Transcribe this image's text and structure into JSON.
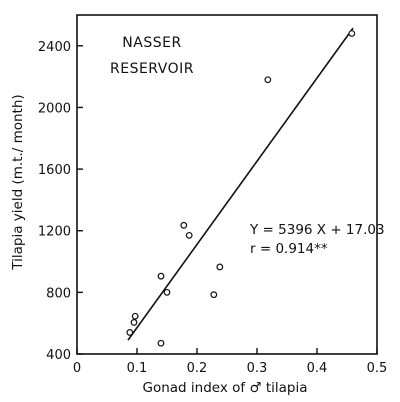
{
  "chart_data": {
    "type": "scatter",
    "title": "",
    "annotation_lines": [
      "NASSER",
      "RESERVOIR"
    ],
    "xlabel": "Gonad index of ♂ tilapia",
    "ylabel": "Tilapia yield (m.t./ month)",
    "xlim": [
      0,
      0.5
    ],
    "ylim": [
      400,
      2600
    ],
    "x_ticks": [
      0,
      0.1,
      0.2,
      0.3,
      0.4,
      0.5
    ],
    "x_tick_labels": [
      "0",
      "0.1",
      "0.2",
      "0.3",
      "0.4",
      "0.5"
    ],
    "y_ticks": [
      400,
      800,
      1200,
      1600,
      2000,
      2400
    ],
    "y_tick_labels": [
      "400",
      "800",
      "1200",
      "1600",
      "2000",
      "2400"
    ],
    "grid": false,
    "points": [
      {
        "x": 0.088,
        "y": 540
      },
      {
        "x": 0.095,
        "y": 605
      },
      {
        "x": 0.097,
        "y": 645
      },
      {
        "x": 0.14,
        "y": 470
      },
      {
        "x": 0.14,
        "y": 905
      },
      {
        "x": 0.15,
        "y": 800
      },
      {
        "x": 0.178,
        "y": 1235
      },
      {
        "x": 0.187,
        "y": 1170
      },
      {
        "x": 0.228,
        "y": 785
      },
      {
        "x": 0.238,
        "y": 965
      },
      {
        "x": 0.318,
        "y": 2180
      },
      {
        "x": 0.458,
        "y": 2480
      }
    ],
    "regression": {
      "x_start": 0.085,
      "x_end": 0.46,
      "y_start": 490,
      "y_end": 2515,
      "equation": "Y = 5396 X + 17.03",
      "r_text": "r = 0.914**"
    }
  }
}
